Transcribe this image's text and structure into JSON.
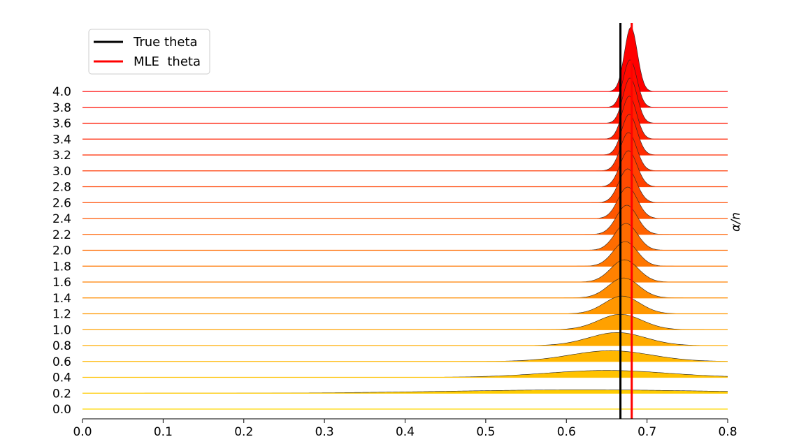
{
  "chart_data": {
    "type": "area",
    "ylabel": "α/n",
    "xlim": [
      0.0,
      0.8
    ],
    "x_ticks": [
      "0.0",
      "0.1",
      "0.2",
      "0.3",
      "0.4",
      "0.5",
      "0.6",
      "0.7",
      "0.8"
    ],
    "grid": false,
    "legend_placement": "top-left",
    "legend": [
      {
        "label": "True theta",
        "color": "#000000"
      },
      {
        "label": "MLE  theta",
        "color": "#ff0000"
      }
    ],
    "true_theta": 0.667,
    "mle_theta": 0.681,
    "series": [
      {
        "name": "0.0",
        "peak_x": 0.4,
        "spread": 0.5,
        "height": 0.01
      },
      {
        "name": "0.2",
        "peak_x": 0.62,
        "spread": 0.16,
        "height": 0.22
      },
      {
        "name": "0.4",
        "peak_x": 0.65,
        "spread": 0.075,
        "height": 0.45
      },
      {
        "name": "0.6",
        "peak_x": 0.655,
        "spread": 0.05,
        "height": 0.7
      },
      {
        "name": "0.8",
        "peak_x": 0.663,
        "spread": 0.035,
        "height": 0.85
      },
      {
        "name": "1.0",
        "peak_x": 0.667,
        "spread": 0.027,
        "height": 1.0
      },
      {
        "name": "1.2",
        "peak_x": 0.669,
        "spread": 0.022,
        "height": 1.15
      },
      {
        "name": "1.4",
        "peak_x": 0.671,
        "spread": 0.019,
        "height": 1.3
      },
      {
        "name": "1.6",
        "peak_x": 0.672,
        "spread": 0.017,
        "height": 1.45
      },
      {
        "name": "1.8",
        "peak_x": 0.673,
        "spread": 0.015,
        "height": 1.6
      },
      {
        "name": "2.0",
        "peak_x": 0.674,
        "spread": 0.014,
        "height": 1.75
      },
      {
        "name": "2.2",
        "peak_x": 0.675,
        "spread": 0.013,
        "height": 1.9
      },
      {
        "name": "2.4",
        "peak_x": 0.676,
        "spread": 0.012,
        "height": 2.05
      },
      {
        "name": "2.6",
        "peak_x": 0.676,
        "spread": 0.011,
        "height": 2.2
      },
      {
        "name": "2.8",
        "peak_x": 0.677,
        "spread": 0.0105,
        "height": 2.35
      },
      {
        "name": "3.0",
        "peak_x": 0.677,
        "spread": 0.01,
        "height": 2.5
      },
      {
        "name": "3.2",
        "peak_x": 0.678,
        "spread": 0.0095,
        "height": 2.65
      },
      {
        "name": "3.4",
        "peak_x": 0.678,
        "spread": 0.009,
        "height": 2.8
      },
      {
        "name": "3.6",
        "peak_x": 0.679,
        "spread": 0.0087,
        "height": 2.95
      },
      {
        "name": "3.8",
        "peak_x": 0.679,
        "spread": 0.0084,
        "height": 3.1
      },
      {
        "name": "4.0",
        "peak_x": 0.68,
        "spread": 0.008,
        "height": 4.2
      }
    ]
  }
}
